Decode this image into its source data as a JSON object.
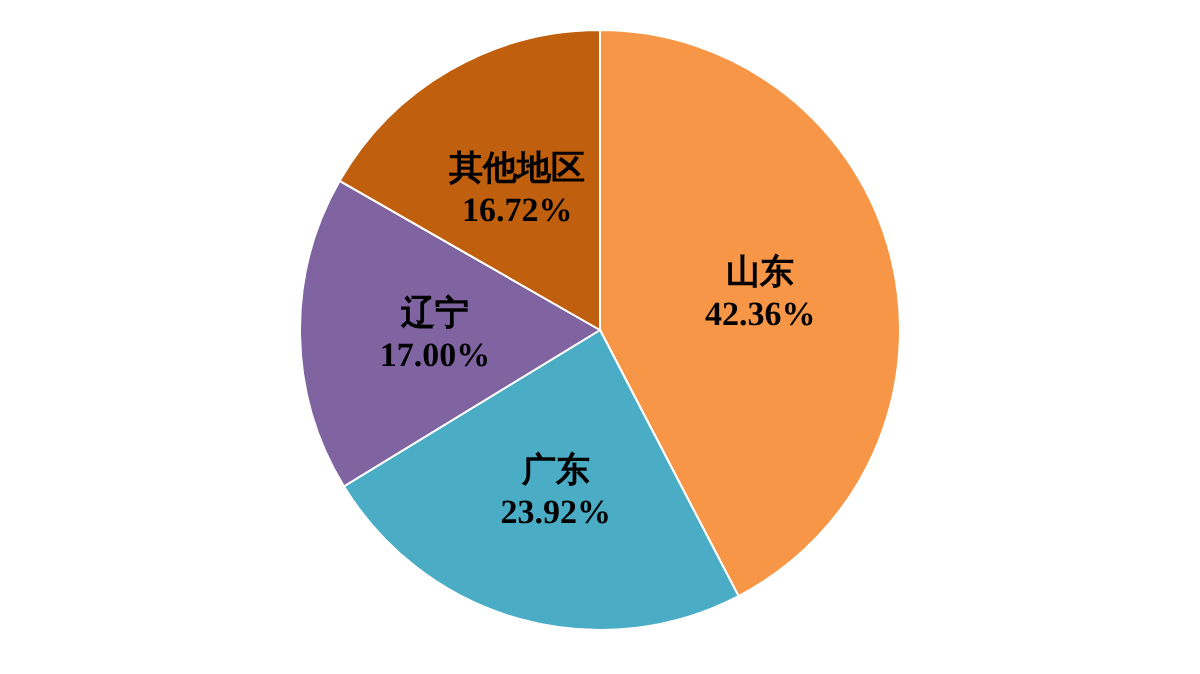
{
  "chart_data": {
    "type": "pie",
    "categories": [
      "山东",
      "广东",
      "辽宁",
      "其他地区"
    ],
    "values": [
      42.36,
      23.92,
      17.0,
      16.72
    ],
    "value_labels": [
      "42.36%",
      "23.92%",
      "17.00%",
      "16.72%"
    ],
    "colors": [
      "#f79646",
      "#4bacc6",
      "#8064a2",
      "#c0600f"
    ]
  }
}
